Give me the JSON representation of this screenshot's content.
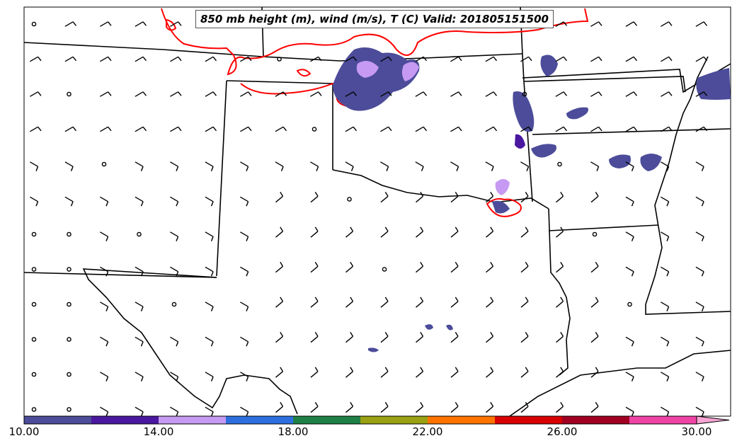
{
  "map": {
    "title": "850 mb height (m), wind (m/s), T (C) Valid: 201805151500"
  },
  "colorbar": {
    "ticks": [
      "10.00",
      "14.00",
      "18.00",
      "22.00",
      "26.00",
      "30.00"
    ],
    "colors": [
      "#4c4c9a",
      "#4a17a0",
      "#c69af2",
      "#2e6fe0",
      "#1f8045",
      "#9aa112",
      "#ff7300",
      "#d80000",
      "#a10020",
      "#ef44a6",
      "#f7a5d3"
    ]
  }
}
